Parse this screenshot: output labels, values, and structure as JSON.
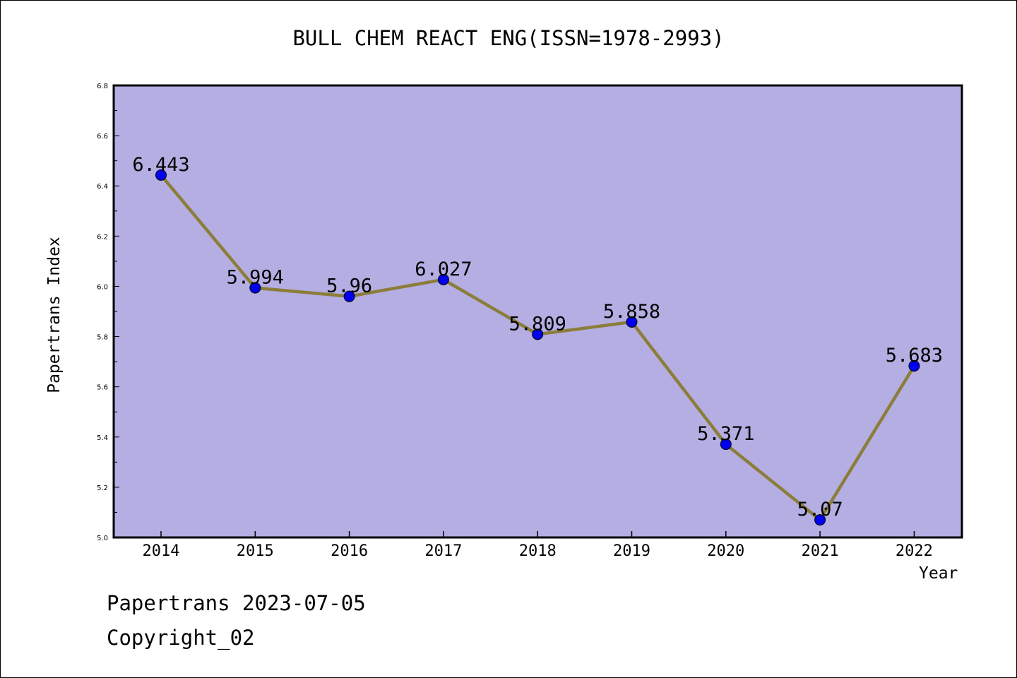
{
  "chart_data": {
    "type": "line",
    "title": "BULL CHEM REACT ENG(ISSN=1978-2993)",
    "xlabel": "Year",
    "ylabel": "Papertrans Index",
    "categories": [
      "2014",
      "2015",
      "2016",
      "2017",
      "2018",
      "2019",
      "2020",
      "2021",
      "2022"
    ],
    "series": [
      {
        "values": [
          6.443,
          5.994,
          5.96,
          6.027,
          5.809,
          5.858,
          5.371,
          5.07,
          5.683
        ],
        "labels": [
          "6.443",
          "5.994",
          "5.96",
          "6.027",
          "5.809",
          "5.858",
          "5.371",
          "5.07",
          "5.683"
        ]
      }
    ],
    "ylim": [
      5.0,
      6.8
    ],
    "yticks": [
      "5.0",
      "5.2",
      "5.4",
      "5.6",
      "5.8",
      "6.0",
      "6.2",
      "6.4",
      "6.6",
      "6.8"
    ],
    "grid": false,
    "colors": {
      "plot_background": "#b4aee2",
      "line": "#8b7d3a",
      "marker": "#0000ee"
    }
  },
  "footer": {
    "date": "Papertrans 2023-07-05",
    "copyright": "Copyright_02"
  }
}
